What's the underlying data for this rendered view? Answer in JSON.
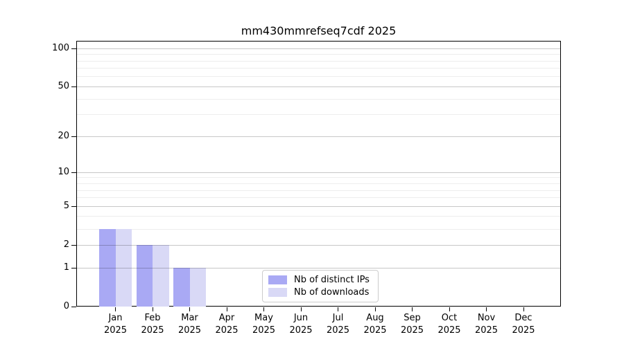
{
  "chart_data": {
    "type": "bar",
    "title": "mm430mmrefseq7cdf 2025",
    "year": "2025",
    "categories": [
      "Jan",
      "Feb",
      "Mar",
      "Apr",
      "May",
      "Jun",
      "Jul",
      "Aug",
      "Sep",
      "Oct",
      "Nov",
      "Dec"
    ],
    "series": [
      {
        "name": "Nb of distinct IPs",
        "color": "#a9a9f4",
        "values": [
          3,
          2,
          1,
          0,
          0,
          0,
          0,
          0,
          0,
          0,
          0,
          0
        ]
      },
      {
        "name": "Nb of downloads",
        "color": "#d9d9f6",
        "values": [
          3,
          2,
          1,
          0,
          0,
          0,
          0,
          0,
          0,
          0,
          0,
          0
        ]
      }
    ],
    "xlabel": "",
    "ylabel": "",
    "yscale": "log1p",
    "ylim": [
      0,
      115
    ],
    "y_major_ticks": [
      0,
      1,
      2,
      5,
      10,
      20,
      50,
      100
    ],
    "y_minor_ticks": [
      3,
      4,
      6,
      7,
      8,
      9,
      30,
      40,
      60,
      70,
      80,
      90
    ],
    "grid": true,
    "legend_position": "lower center"
  },
  "colors": {
    "axis": "#000000",
    "bar_distinct_ips": "#a9a9f4",
    "bar_downloads": "#d9d9f6",
    "legend_border": "#cccccc"
  }
}
